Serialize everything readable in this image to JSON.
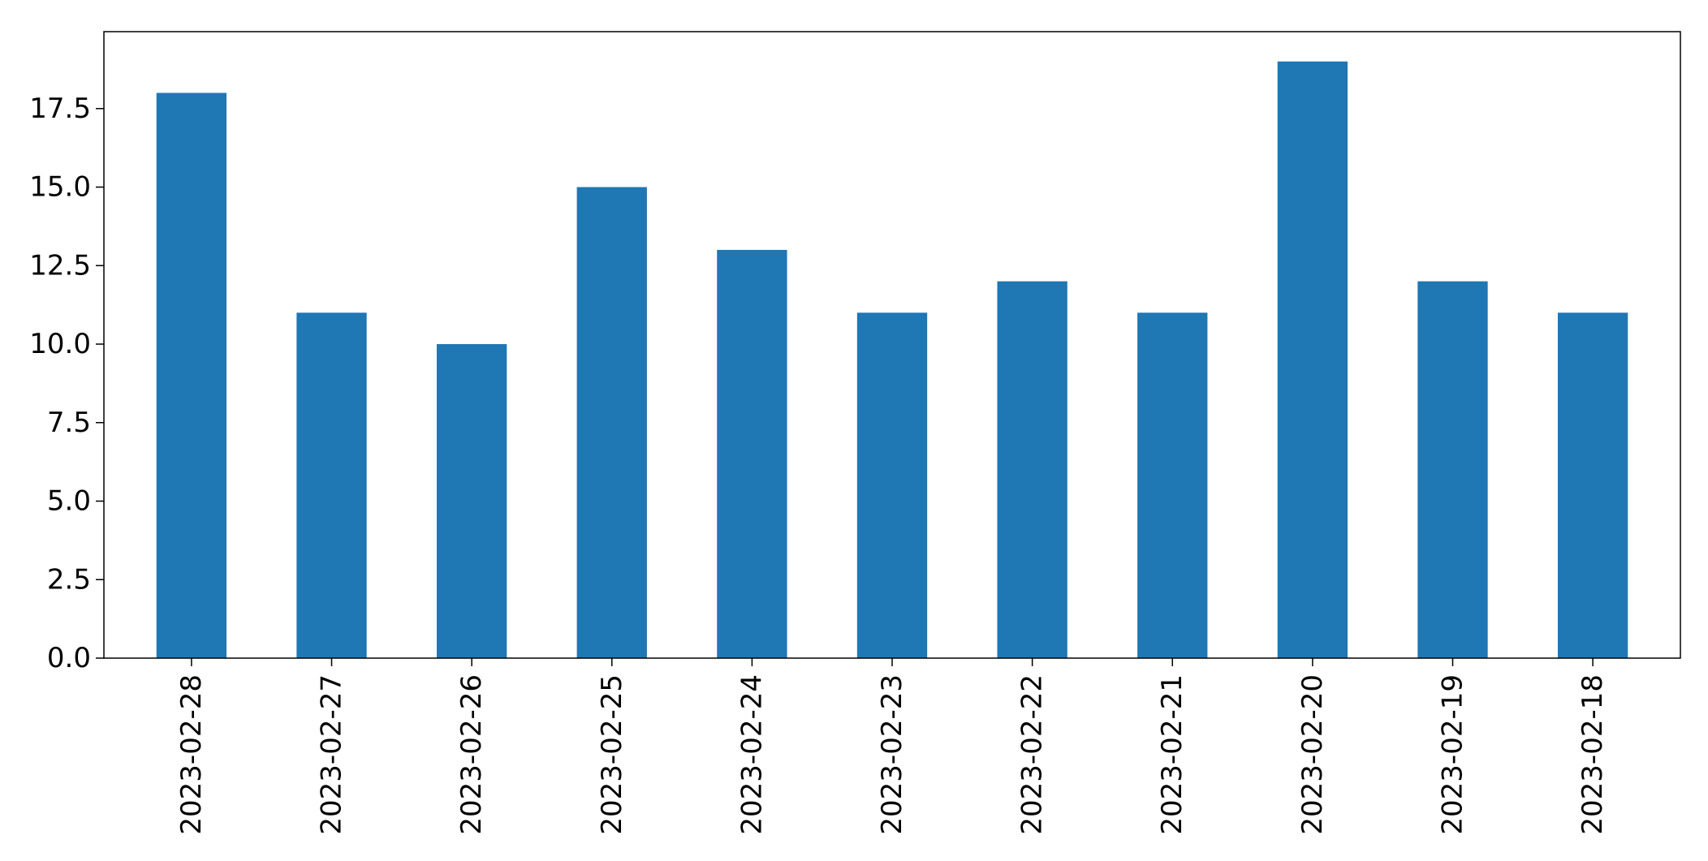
{
  "chart_data": {
    "type": "bar",
    "categories": [
      "2023-02-28",
      "2023-02-27",
      "2023-02-26",
      "2023-02-25",
      "2023-02-24",
      "2023-02-23",
      "2023-02-22",
      "2023-02-21",
      "2023-02-20",
      "2023-02-19",
      "2023-02-18"
    ],
    "values": [
      18,
      11,
      10,
      15,
      13,
      11,
      12,
      11,
      19,
      12,
      11
    ],
    "title": "",
    "xlabel": "",
    "ylabel": "",
    "ylim": [
      0,
      19.95
    ],
    "yticks": [
      "0.0",
      "2.5",
      "5.0",
      "7.5",
      "10.0",
      "12.5",
      "15.0",
      "17.5"
    ],
    "grid": false,
    "legend": "none",
    "bar_color": "#1f77b4"
  }
}
